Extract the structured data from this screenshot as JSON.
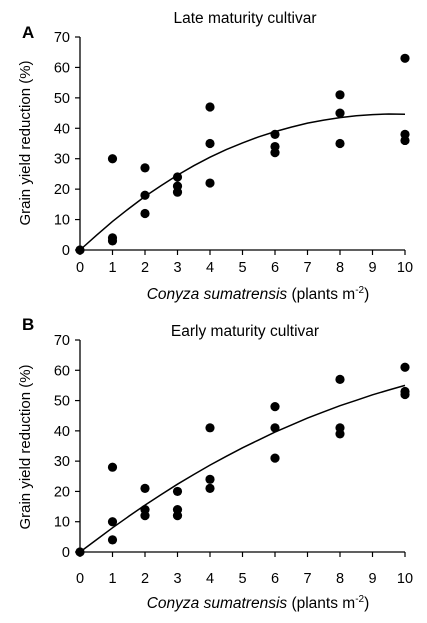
{
  "chart_data": [
    {
      "type": "scatter",
      "panel_label": "A",
      "title": "Late maturity cultivar",
      "ylabel": "Grain yield reduction (%)",
      "xlabel": {
        "species": "Conyza sumatrensis",
        "units_prefix": "(plants m",
        "units_exp": "-2",
        "units_suffix": ")"
      },
      "xlim": [
        0,
        10
      ],
      "ylim": [
        0,
        70
      ],
      "xticks": [
        0,
        1,
        2,
        3,
        4,
        5,
        6,
        7,
        8,
        9,
        10
      ],
      "yticks": [
        0,
        10,
        20,
        30,
        40,
        50,
        60,
        70
      ],
      "grid": false,
      "points": [
        [
          0,
          0
        ],
        [
          1,
          30
        ],
        [
          1,
          4
        ],
        [
          1,
          3
        ],
        [
          2,
          27
        ],
        [
          2,
          18
        ],
        [
          2,
          12
        ],
        [
          3,
          24
        ],
        [
          3,
          21
        ],
        [
          3,
          19
        ],
        [
          4,
          47
        ],
        [
          4,
          35
        ],
        [
          4,
          22
        ],
        [
          6,
          38
        ],
        [
          6,
          34
        ],
        [
          6,
          32
        ],
        [
          8,
          51
        ],
        [
          8,
          45
        ],
        [
          8,
          35
        ],
        [
          10,
          63
        ],
        [
          10,
          38
        ],
        [
          10,
          36
        ]
      ],
      "fit_curve": [
        [
          0,
          0
        ],
        [
          0.5,
          4.8
        ],
        [
          1,
          9.4
        ],
        [
          1.5,
          13.6
        ],
        [
          2,
          17.6
        ],
        [
          2.5,
          21.2
        ],
        [
          3,
          24.6
        ],
        [
          3.5,
          27.7
        ],
        [
          4,
          30.5
        ],
        [
          4.5,
          33
        ],
        [
          5,
          35.2
        ],
        [
          5.5,
          37.2
        ],
        [
          6,
          38.9
        ],
        [
          6.5,
          40.4
        ],
        [
          7,
          41.7
        ],
        [
          7.5,
          42.7
        ],
        [
          8,
          43.5
        ],
        [
          8.5,
          44.1
        ],
        [
          9,
          44.5
        ],
        [
          9.5,
          44.7
        ],
        [
          10,
          44.6
        ]
      ]
    },
    {
      "type": "scatter",
      "panel_label": "B",
      "title": "Early maturity cultivar",
      "ylabel": "Grain yield reduction (%)",
      "xlabel": {
        "species": "Conyza sumatrensis",
        "units_prefix": "(plants m",
        "units_exp": "-2",
        "units_suffix": ")"
      },
      "xlim": [
        0,
        10
      ],
      "ylim": [
        0,
        70
      ],
      "xticks": [
        0,
        1,
        2,
        3,
        4,
        5,
        6,
        7,
        8,
        9,
        10
      ],
      "yticks": [
        0,
        10,
        20,
        30,
        40,
        50,
        60,
        70
      ],
      "grid": false,
      "points": [
        [
          0,
          0
        ],
        [
          1,
          28
        ],
        [
          1,
          10
        ],
        [
          1,
          4
        ],
        [
          2,
          21
        ],
        [
          2,
          14
        ],
        [
          2,
          12
        ],
        [
          3,
          20
        ],
        [
          3,
          14
        ],
        [
          3,
          12
        ],
        [
          4,
          41
        ],
        [
          4,
          24
        ],
        [
          4,
          21
        ],
        [
          6,
          48
        ],
        [
          6,
          41
        ],
        [
          6,
          31
        ],
        [
          8,
          57
        ],
        [
          8,
          41
        ],
        [
          8,
          39
        ],
        [
          10,
          61
        ],
        [
          10,
          53
        ],
        [
          10,
          52
        ]
      ],
      "fit_curve": [
        [
          0,
          0
        ],
        [
          0.5,
          4
        ],
        [
          1,
          8
        ],
        [
          1.5,
          11.8
        ],
        [
          2,
          15.5
        ],
        [
          2.5,
          19
        ],
        [
          3,
          22.4
        ],
        [
          3.5,
          25.6
        ],
        [
          4,
          28.7
        ],
        [
          4.5,
          31.6
        ],
        [
          5,
          34.4
        ],
        [
          5.5,
          37
        ],
        [
          6,
          39.6
        ],
        [
          6.5,
          41.9
        ],
        [
          7,
          44.2
        ],
        [
          7.5,
          46.3
        ],
        [
          8,
          48.3
        ],
        [
          8.5,
          50.1
        ],
        [
          9,
          51.9
        ],
        [
          9.5,
          53.5
        ],
        [
          10,
          55
        ]
      ]
    }
  ]
}
